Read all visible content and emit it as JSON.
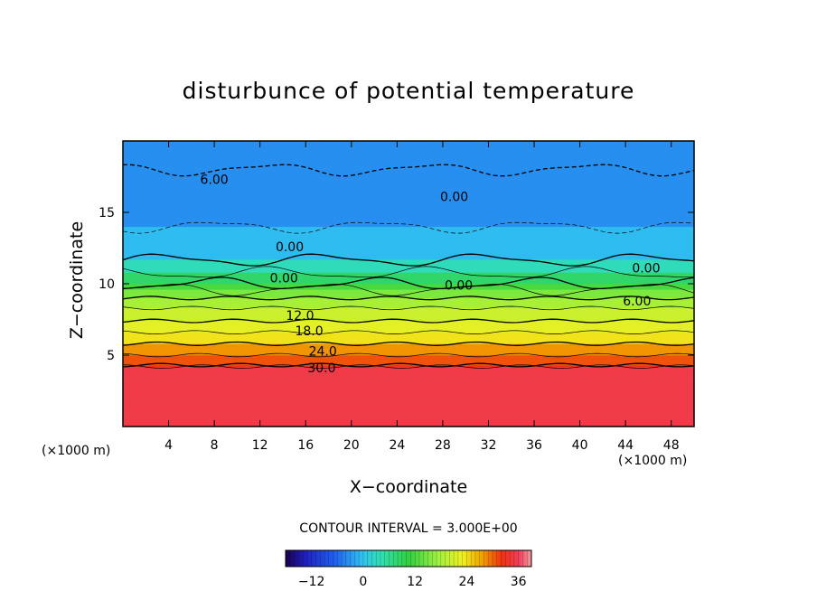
{
  "chart_data": {
    "type": "heatmap",
    "title": "disturbunce of potential temperature",
    "xlabel": "X−coordinate",
    "ylabel": "Z−coordinate",
    "x_unit": "(×1000 m)",
    "y_unit": "(×1000 m)",
    "xlim": [
      0,
      50
    ],
    "ylim": [
      0,
      20
    ],
    "x_ticks": [
      4,
      8,
      12,
      16,
      20,
      24,
      28,
      32,
      36,
      40,
      44,
      48
    ],
    "y_ticks": [
      5,
      10,
      15
    ],
    "contour_interval_text": "CONTOUR INTERVAL = 3.000E+00",
    "contour_interval": 3.0,
    "colorbar": {
      "min": -18,
      "max": 39,
      "ticks": [
        -12,
        0,
        12,
        24,
        36
      ]
    },
    "contour_labels": [
      {
        "text": "6.00",
        "x": 8,
        "z": 17.3
      },
      {
        "text": "0.00",
        "x": 29,
        "z": 16.1
      },
      {
        "text": "0.00",
        "x": 14.6,
        "z": 12.6
      },
      {
        "text": "0.00",
        "x": 14.1,
        "z": 10.4
      },
      {
        "text": "0.00",
        "x": 29.4,
        "z": 9.9
      },
      {
        "text": "0.00",
        "x": 45.8,
        "z": 11.1
      },
      {
        "text": "6.00",
        "x": 45,
        "z": 8.8
      },
      {
        "text": "12.0",
        "x": 15.5,
        "z": 7.8
      },
      {
        "text": "18.0",
        "x": 16.3,
        "z": 6.7
      },
      {
        "text": "24.0",
        "x": 17.5,
        "z": 5.3
      },
      {
        "text": "30.0",
        "x": 17.4,
        "z": 4.1
      }
    ],
    "vertical_profile": [
      {
        "z": 0.0,
        "value": 34
      },
      {
        "z": 4.2,
        "value": 33
      },
      {
        "z": 4.3,
        "value": 30
      },
      {
        "z": 5.0,
        "value": 27
      },
      {
        "z": 5.8,
        "value": 24
      },
      {
        "z": 6.6,
        "value": 21
      },
      {
        "z": 7.4,
        "value": 18
      },
      {
        "z": 8.3,
        "value": 15
      },
      {
        "z": 9.0,
        "value": 12
      },
      {
        "z": 9.6,
        "value": 9
      },
      {
        "z": 10.0,
        "value": 6
      },
      {
        "z": 11.0,
        "value": 2
      },
      {
        "z": 12.0,
        "value": -1
      },
      {
        "z": 14.0,
        "value": -3
      },
      {
        "z": 16.0,
        "value": -4
      },
      {
        "z": 18.0,
        "value": -6
      },
      {
        "z": 20.0,
        "value": -3
      }
    ],
    "grid": false,
    "legend_position": "bottom"
  }
}
